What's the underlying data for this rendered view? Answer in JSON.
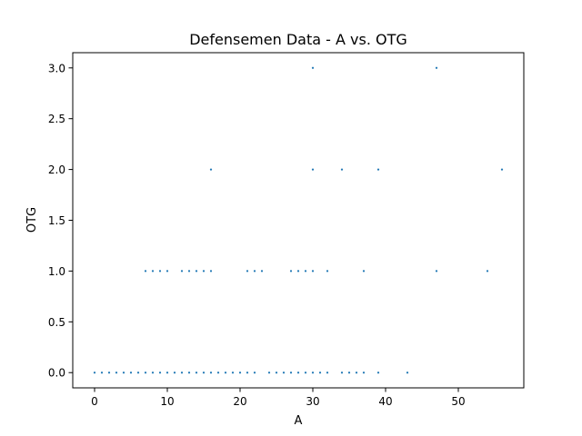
{
  "chart_data": {
    "type": "scatter",
    "title": "Defensemen Data - A vs. OTG",
    "xlabel": "A",
    "ylabel": "OTG",
    "xlim": [
      -3,
      59
    ],
    "ylim": [
      -0.15,
      3.15
    ],
    "x_ticks": [
      0,
      10,
      20,
      30,
      40,
      50
    ],
    "y_ticks": [
      0,
      0.5,
      1,
      1.5,
      2,
      2.5,
      3
    ],
    "x_tick_labels": [
      "0",
      "10",
      "20",
      "30",
      "40",
      "50"
    ],
    "y_tick_labels": [
      "0.0",
      "0.5",
      "1.0",
      "1.5",
      "2.0",
      "2.5",
      "3.0"
    ],
    "grid": false,
    "legend": "none",
    "series": [
      {
        "color": "#1f77b4",
        "points": [
          [
            0,
            0
          ],
          [
            1,
            0
          ],
          [
            2,
            0
          ],
          [
            3,
            0
          ],
          [
            4,
            0
          ],
          [
            5,
            0
          ],
          [
            6,
            0
          ],
          [
            7,
            0
          ],
          [
            8,
            0
          ],
          [
            9,
            0
          ],
          [
            10,
            0
          ],
          [
            11,
            0
          ],
          [
            12,
            0
          ],
          [
            13,
            0
          ],
          [
            14,
            0
          ],
          [
            15,
            0
          ],
          [
            16,
            0
          ],
          [
            17,
            0
          ],
          [
            18,
            0
          ],
          [
            19,
            0
          ],
          [
            20,
            0
          ],
          [
            21,
            0
          ],
          [
            22,
            0
          ],
          [
            24,
            0
          ],
          [
            25,
            0
          ],
          [
            26,
            0
          ],
          [
            27,
            0
          ],
          [
            28,
            0
          ],
          [
            29,
            0
          ],
          [
            30,
            0
          ],
          [
            31,
            0
          ],
          [
            32,
            0
          ],
          [
            34,
            0
          ],
          [
            35,
            0
          ],
          [
            36,
            0
          ],
          [
            37,
            0
          ],
          [
            39,
            0
          ],
          [
            43,
            0
          ],
          [
            7,
            1
          ],
          [
            8,
            1
          ],
          [
            9,
            1
          ],
          [
            10,
            1
          ],
          [
            12,
            1
          ],
          [
            13,
            1
          ],
          [
            14,
            1
          ],
          [
            15,
            1
          ],
          [
            16,
            1
          ],
          [
            21,
            1
          ],
          [
            22,
            1
          ],
          [
            23,
            1
          ],
          [
            27,
            1
          ],
          [
            28,
            1
          ],
          [
            29,
            1
          ],
          [
            30,
            1
          ],
          [
            32,
            1
          ],
          [
            37,
            1
          ],
          [
            47,
            1
          ],
          [
            54,
            1
          ],
          [
            16,
            2
          ],
          [
            30,
            2
          ],
          [
            34,
            2
          ],
          [
            39,
            2
          ],
          [
            56,
            2
          ],
          [
            30,
            3
          ],
          [
            47,
            3
          ]
        ]
      }
    ]
  }
}
